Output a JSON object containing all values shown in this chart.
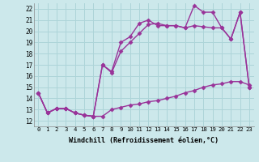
{
  "background_color": "#cce8eb",
  "grid_color": "#add4d8",
  "line_color": "#993399",
  "marker": "D",
  "markersize": 2.5,
  "linewidth": 1.0,
  "xlabel": "Windchill (Refroidissement éolien,°C)",
  "xlim": [
    -0.5,
    23.5
  ],
  "ylim": [
    11.5,
    22.5
  ],
  "xticks": [
    0,
    1,
    2,
    3,
    4,
    5,
    6,
    7,
    8,
    9,
    10,
    11,
    12,
    13,
    14,
    15,
    16,
    17,
    18,
    19,
    20,
    21,
    22,
    23
  ],
  "yticks": [
    12,
    13,
    14,
    15,
    16,
    17,
    18,
    19,
    20,
    21,
    22
  ],
  "series": [
    [
      14.5,
      12.7,
      13.1,
      13.1,
      12.7,
      12.5,
      12.4,
      12.4,
      13.0,
      13.2,
      13.4,
      13.5,
      13.7,
      13.8,
      14.0,
      14.2,
      14.5,
      14.7,
      15.0,
      15.2,
      15.3,
      15.5,
      15.5,
      15.2
    ],
    [
      14.5,
      12.7,
      13.1,
      13.1,
      12.7,
      12.5,
      12.4,
      17.0,
      16.3,
      18.2,
      19.0,
      19.8,
      20.6,
      20.7,
      20.5,
      20.5,
      20.3,
      20.5,
      20.4,
      20.3,
      20.3,
      19.3,
      21.7,
      15.0
    ],
    [
      14.5,
      12.7,
      13.1,
      13.1,
      12.7,
      12.5,
      12.4,
      17.0,
      16.4,
      19.0,
      19.5,
      20.7,
      21.0,
      20.5,
      20.5,
      20.5,
      20.3,
      22.3,
      21.7,
      21.7,
      20.3,
      19.3,
      21.7,
      15.0
    ]
  ]
}
